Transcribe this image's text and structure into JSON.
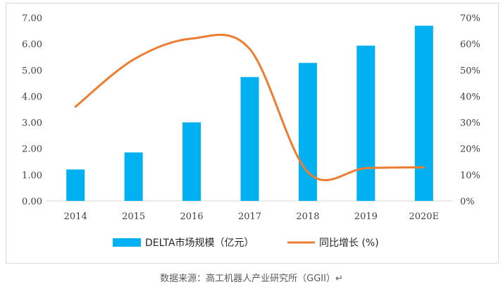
{
  "chart_data": {
    "type": "bar",
    "categories": [
      "2014",
      "2015",
      "2016",
      "2017",
      "2018",
      "2019",
      "2020E"
    ],
    "series": [
      {
        "name": "DELTA市场规模（亿元）",
        "kind": "bar",
        "axis": "left",
        "color": "#00b0f0",
        "values": [
          1.2,
          1.85,
          3.0,
          4.73,
          5.27,
          5.93,
          6.69
        ]
      },
      {
        "name": "同比增长 (%)",
        "kind": "line",
        "axis": "right",
        "color": "#ed7d31",
        "values": [
          0.36,
          0.54,
          0.62,
          0.58,
          0.11,
          0.125,
          0.128
        ]
      }
    ],
    "y_left": {
      "range": [
        0,
        7
      ],
      "ticks": [
        "0.00",
        "1.00",
        "2.00",
        "3.00",
        "4.00",
        "5.00",
        "6.00",
        "7.00"
      ]
    },
    "y_right": {
      "range": [
        0,
        0.7
      ],
      "ticks": [
        "0%",
        "10%",
        "20%",
        "30%",
        "40%",
        "50%",
        "60%",
        "70%"
      ]
    },
    "grid": false,
    "legend_position": "bottom"
  },
  "source_note": "数据来源：高工机器人产业研究所（GGII）↵"
}
